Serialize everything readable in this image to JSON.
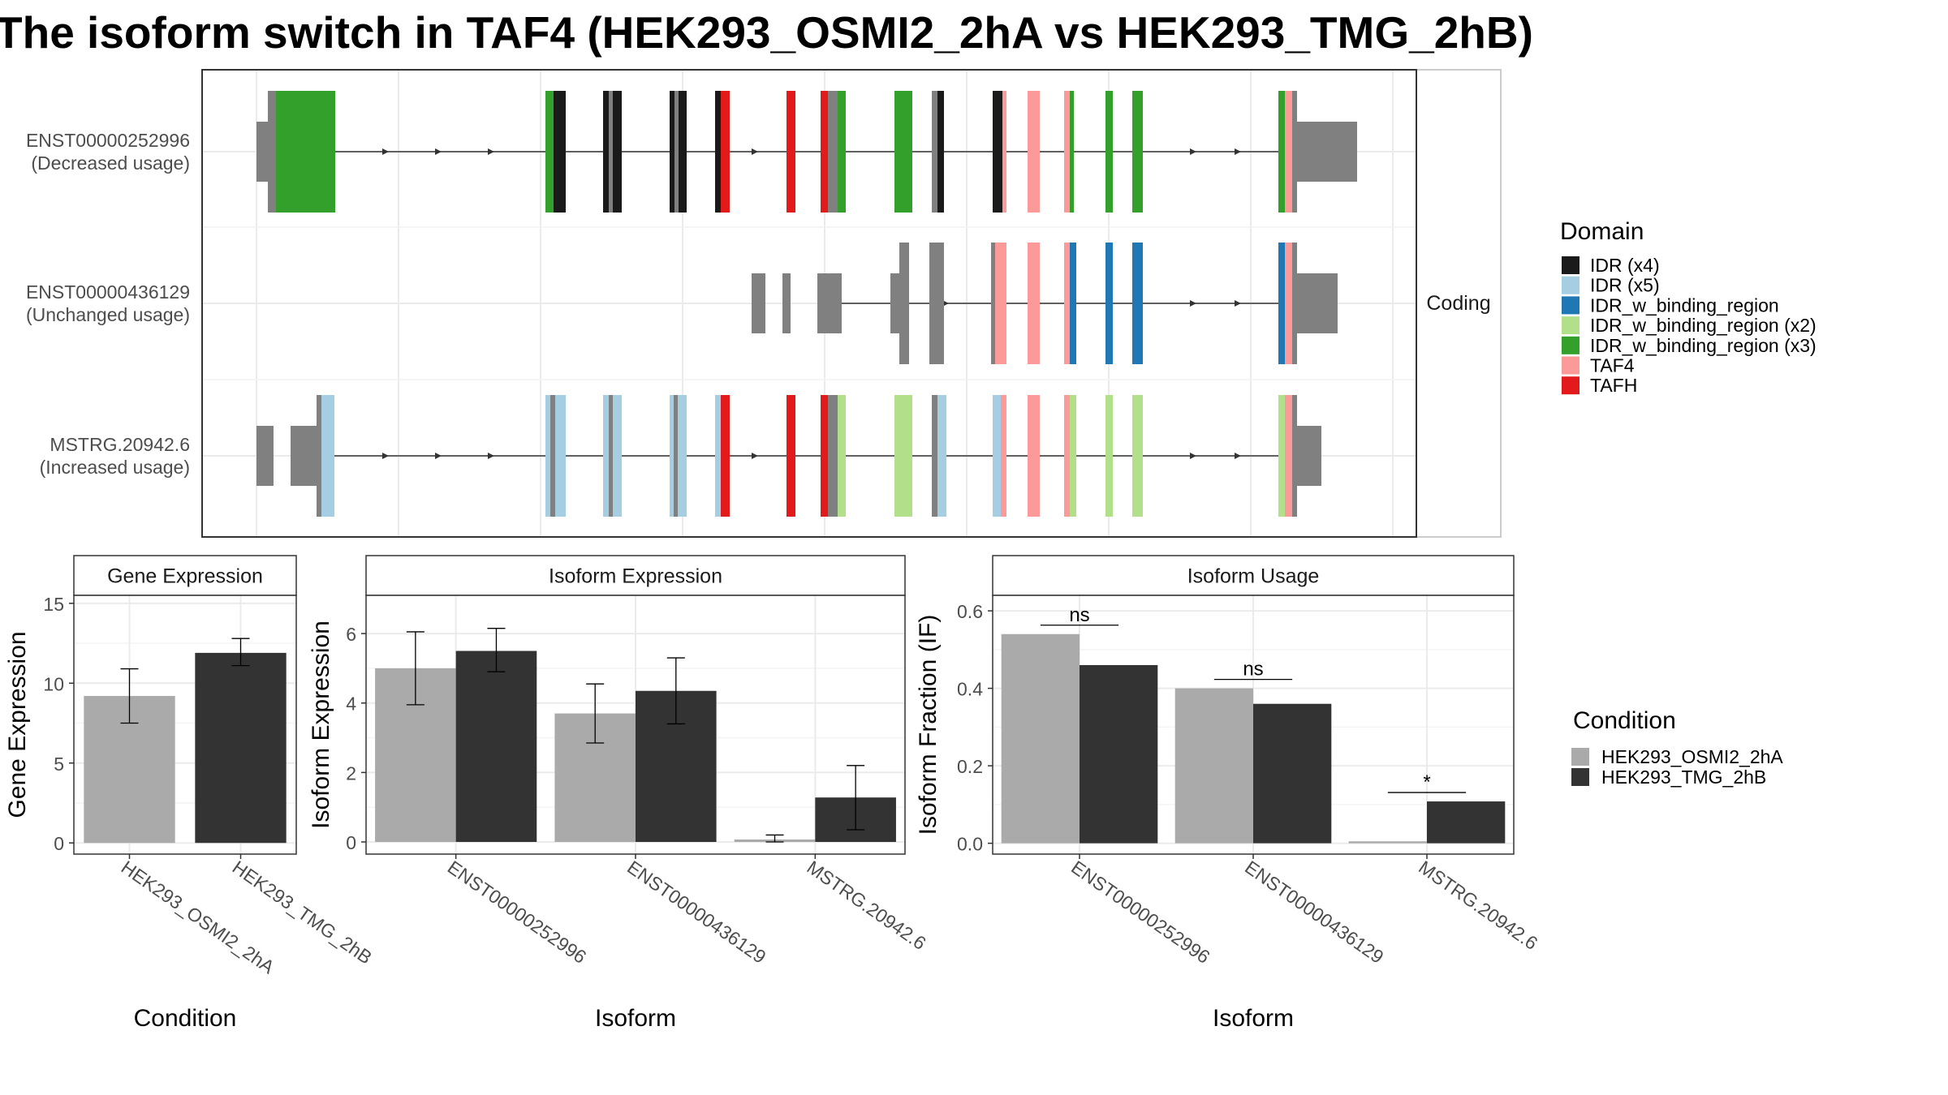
{
  "title": "The isoform switch in TAF4 (HEK293_OSMI2_2hA vs HEK293_TMG_2hB)",
  "colors": {
    "IDR (x4)": "#1a1a1a",
    "IDR (x5)": "#a6cee3",
    "IDR_w_binding_region": "#1f78b4",
    "IDR_w_binding_region (x2)": "#b2df8a",
    "IDR_w_binding_region (x3)": "#33a02c",
    "TAF4": "#fb9a99",
    "TAFH": "#e31a1c",
    "none": "#808080",
    "condA": "#aaaaaa",
    "condB": "#333333"
  },
  "transcript_panel": {
    "facet_label": "Coding",
    "transcripts": [
      {
        "id": "ENST00000252996",
        "usage": "(Decreased usage)"
      },
      {
        "id": "ENST00000436129",
        "usage": "(Unchanged usage)"
      },
      {
        "id": "MSTRG.20942.6",
        "usage": "(Increased usage)"
      }
    ],
    "legend_title": "Domain",
    "legend_items": [
      "IDR (x4)",
      "IDR (x5)",
      "IDR_w_binding_region",
      "IDR_w_binding_region (x2)",
      "IDR_w_binding_region (x3)",
      "TAF4",
      "TAFH"
    ]
  },
  "chart_data": [
    {
      "type": "bar",
      "title": "Gene Expression",
      "xlabel": "Condition",
      "ylabel": "Gene Expression",
      "categories": [
        "HEK293_OSMI2_2hA",
        "HEK293_TMG_2hB"
      ],
      "values": [
        9.2,
        11.9
      ],
      "error": [
        [
          7.5,
          10.9
        ],
        [
          11.1,
          12.8
        ]
      ],
      "ylim": [
        -0.7,
        15.5
      ],
      "yticks": [
        0,
        5,
        10,
        15
      ]
    },
    {
      "type": "bar",
      "title": "Isoform Expression",
      "xlabel": "Isoform",
      "ylabel": "Isoform Expression",
      "categories": [
        "ENST00000252996",
        "ENST00000436129",
        "MSTRG.20942.6"
      ],
      "series": [
        {
          "name": "HEK293_OSMI2_2hA",
          "values": [
            5.0,
            3.7,
            0.07
          ],
          "error": [
            [
              3.95,
              6.05
            ],
            [
              2.85,
              4.55
            ],
            [
              0.0,
              0.2
            ]
          ]
        },
        {
          "name": "HEK293_TMG_2hB",
          "values": [
            5.5,
            4.35,
            1.28
          ],
          "error": [
            [
              4.9,
              6.15
            ],
            [
              3.4,
              5.3
            ],
            [
              0.35,
              2.2
            ]
          ]
        }
      ],
      "ylim": [
        -0.35,
        7.1
      ],
      "yticks": [
        0,
        2,
        4,
        6
      ]
    },
    {
      "type": "bar",
      "title": "Isoform Usage",
      "xlabel": "Isoform",
      "ylabel": "Isoform Fraction (IF)",
      "categories": [
        "ENST00000252996",
        "ENST00000436129",
        "MSTRG.20942.6"
      ],
      "series": [
        {
          "name": "HEK293_OSMI2_2hA",
          "values": [
            0.54,
            0.4,
            0.005
          ]
        },
        {
          "name": "HEK293_TMG_2hB",
          "values": [
            0.46,
            0.36,
            0.108
          ]
        }
      ],
      "significance": [
        "ns",
        "ns",
        "*"
      ],
      "ylim": [
        -0.028,
        0.64
      ],
      "yticks": [
        "0.0",
        "0.2",
        "0.4",
        "0.6"
      ]
    }
  ],
  "condition_legend": {
    "title": "Condition",
    "items": [
      "HEK293_OSMI2_2hA",
      "HEK293_TMG_2hB"
    ]
  }
}
